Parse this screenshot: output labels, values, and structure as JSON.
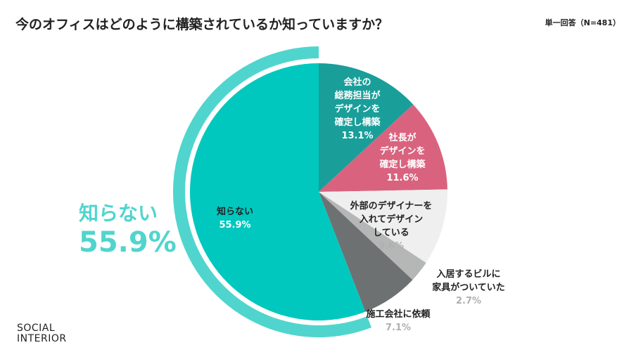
{
  "title": "今のオフィスはどのように構築されているか知っていますか？",
  "note": "単一回答（N=481）",
  "highlight": {
    "label": "知らない",
    "percent": "55.9%"
  },
  "logo": {
    "line1": "SOCIAL",
    "line2": "INTERIOR"
  },
  "colors": {
    "ring": "#4fd5ce",
    "highlight_text": "#4fd5ce"
  },
  "chart_data": {
    "type": "pie",
    "start": "top, clockwise",
    "slices": [
      {
        "label_lines": [
          "会社の",
          "総務担当が",
          "デザインを",
          "確定し構築"
        ],
        "value": 13.1,
        "percent_label": "13.1%",
        "color": "#1a9e9a",
        "text_color": "#ffffff",
        "pct_color": "#ffffff"
      },
      {
        "label_lines": [
          "社長が",
          "デザインを",
          "確定し構築"
        ],
        "value": 11.6,
        "percent_label": "11.6%",
        "color": "#d9637f",
        "text_color": "#ffffff",
        "pct_color": "#ffffff"
      },
      {
        "label_lines": [
          "外部のデザイナーを",
          "入れてデザイン",
          "している"
        ],
        "value": 9.6,
        "percent_label": "9.6%",
        "color": "#efefef",
        "text_color": "#222222",
        "pct_color": "#b0b0b0"
      },
      {
        "label_lines": [
          "入居するビルに",
          "家具がついていた"
        ],
        "value": 2.7,
        "percent_label": "2.7%",
        "color": "#b5b7b6",
        "text_color": "#222222",
        "pct_color": "#b0b0b0"
      },
      {
        "label_lines": [
          "施工会社に依頼"
        ],
        "value": 7.1,
        "percent_label": "7.1%",
        "color": "#6e7171",
        "text_color": "#222222",
        "pct_color": "#b0b0b0"
      },
      {
        "label_lines": [
          "知らない"
        ],
        "value": 55.9,
        "percent_label": "55.9%",
        "color": "#00c8be",
        "text_color": "#222222",
        "pct_color": "#ffffff"
      }
    ]
  }
}
